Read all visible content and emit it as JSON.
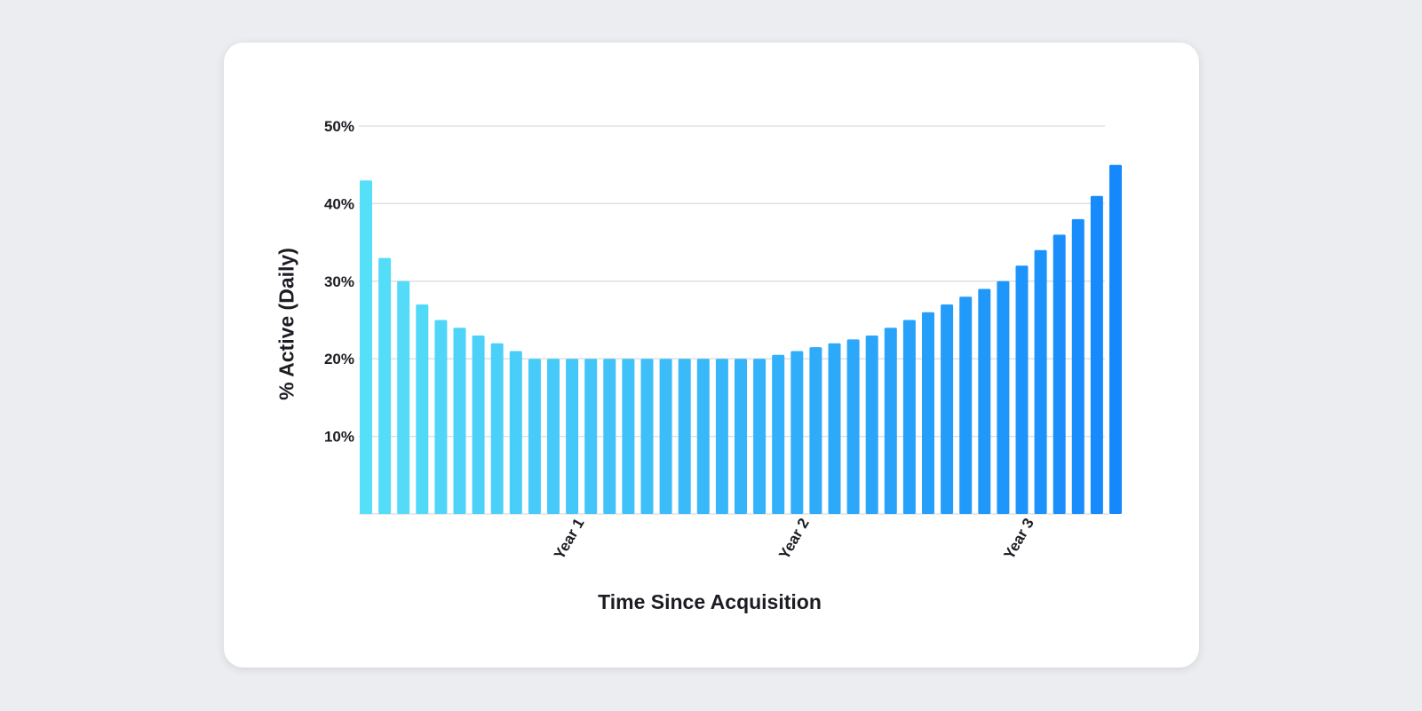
{
  "chart_data": {
    "type": "bar",
    "title": "",
    "xlabel": "Time Since Acquisition",
    "ylabel": "% Active (Daily)",
    "ylim": [
      0,
      50
    ],
    "yticks": [
      {
        "value": 10,
        "label": "10%"
      },
      {
        "value": 20,
        "label": "20%"
      },
      {
        "value": 30,
        "label": "30%"
      },
      {
        "value": 40,
        "label": "40%"
      },
      {
        "value": 50,
        "label": "50%"
      }
    ],
    "xticks": [
      {
        "index": 11,
        "label": "Year 1"
      },
      {
        "index": 23,
        "label": "Year 2"
      },
      {
        "index": 35,
        "label": "Year 3"
      }
    ],
    "grid": true,
    "legend": "none",
    "values": [
      43,
      33,
      30,
      27,
      25,
      24,
      23,
      22,
      21,
      20,
      20,
      20,
      20,
      20,
      20,
      20,
      20,
      20,
      20,
      20,
      20,
      20,
      20.5,
      21,
      21.5,
      22,
      22.5,
      23,
      24,
      25,
      26,
      27,
      28,
      29,
      30,
      32,
      34,
      36,
      38,
      41,
      45
    ],
    "colors": {
      "start": "#56dff8",
      "end": "#1589fb",
      "grid": "#dadcdf"
    }
  }
}
